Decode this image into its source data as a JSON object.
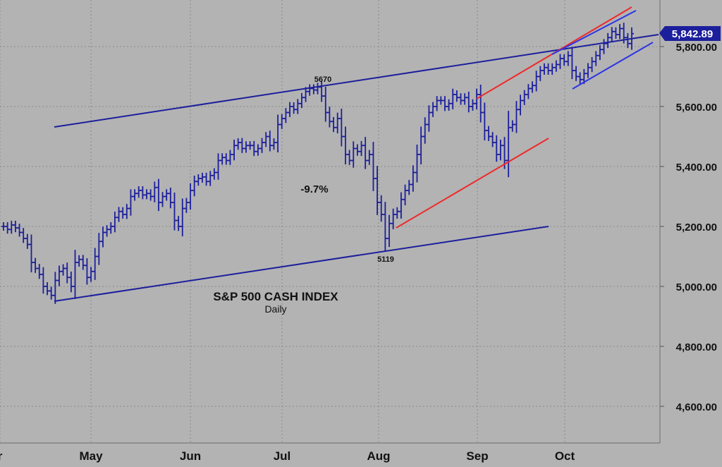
{
  "chart_data": {
    "type": "ohlc",
    "title": "S&P 500 CASH INDEX",
    "subtitle": "Daily",
    "y_ticks": [
      "5,800.00",
      "5,600.00",
      "5,400.00",
      "5,200.00",
      "5,000.00",
      "4,800.00",
      "4,600.00"
    ],
    "y_tick_values": [
      5800,
      5600,
      5400,
      5200,
      5000,
      4800,
      4600
    ],
    "x_ticks": [
      "r",
      "May",
      "Jun",
      "Jul",
      "Aug",
      "Sep",
      "Oct"
    ],
    "last_price_label": "5,842.89",
    "annotations": {
      "peak": "5670",
      "trough": "5119",
      "drawdown": "-9.7%"
    },
    "grid": true,
    "series_color": "#1c1f9c",
    "channel_color": "#1c1f9c",
    "trend_color": "#ee2a2a",
    "closes": [
      5200,
      5190,
      5205,
      5195,
      5180,
      5160,
      5140,
      5080,
      5060,
      5040,
      5000,
      4985,
      4970,
      5020,
      5050,
      5060,
      5030,
      5000,
      5080,
      5090,
      5070,
      5030,
      5050,
      5100,
      5150,
      5180,
      5190,
      5200,
      5230,
      5250,
      5240,
      5260,
      5300,
      5310,
      5320,
      5305,
      5310,
      5300,
      5330,
      5280,
      5300,
      5310,
      5280,
      5220,
      5200,
      5260,
      5280,
      5320,
      5350,
      5360,
      5365,
      5350,
      5370,
      5380,
      5420,
      5430,
      5420,
      5440,
      5470,
      5480,
      5460,
      5470,
      5470,
      5450,
      5460,
      5480,
      5500,
      5470,
      5480,
      5540,
      5560,
      5580,
      5600,
      5590,
      5610,
      5630,
      5650,
      5660,
      5655,
      5665,
      5635,
      5580,
      5550,
      5530,
      5560,
      5500,
      5440,
      5420,
      5460,
      5450,
      5470,
      5420,
      5440,
      5360,
      5280,
      5240,
      5160,
      5210,
      5240,
      5250,
      5290,
      5320,
      5340,
      5380,
      5440,
      5500,
      5540,
      5580,
      5600,
      5620,
      5620,
      5600,
      5610,
      5640,
      5630,
      5620,
      5630,
      5600,
      5610,
      5640,
      5580,
      5520,
      5500,
      5480,
      5440,
      5470,
      5420,
      5530,
      5540,
      5590,
      5620,
      5640,
      5660,
      5670,
      5700,
      5720,
      5730,
      5720,
      5730,
      5740,
      5760,
      5750,
      5770,
      5720,
      5700,
      5690,
      5710,
      5730,
      5750,
      5770,
      5790,
      5810,
      5830,
      5850,
      5840,
      5860,
      5830,
      5810,
      5843
    ]
  }
}
